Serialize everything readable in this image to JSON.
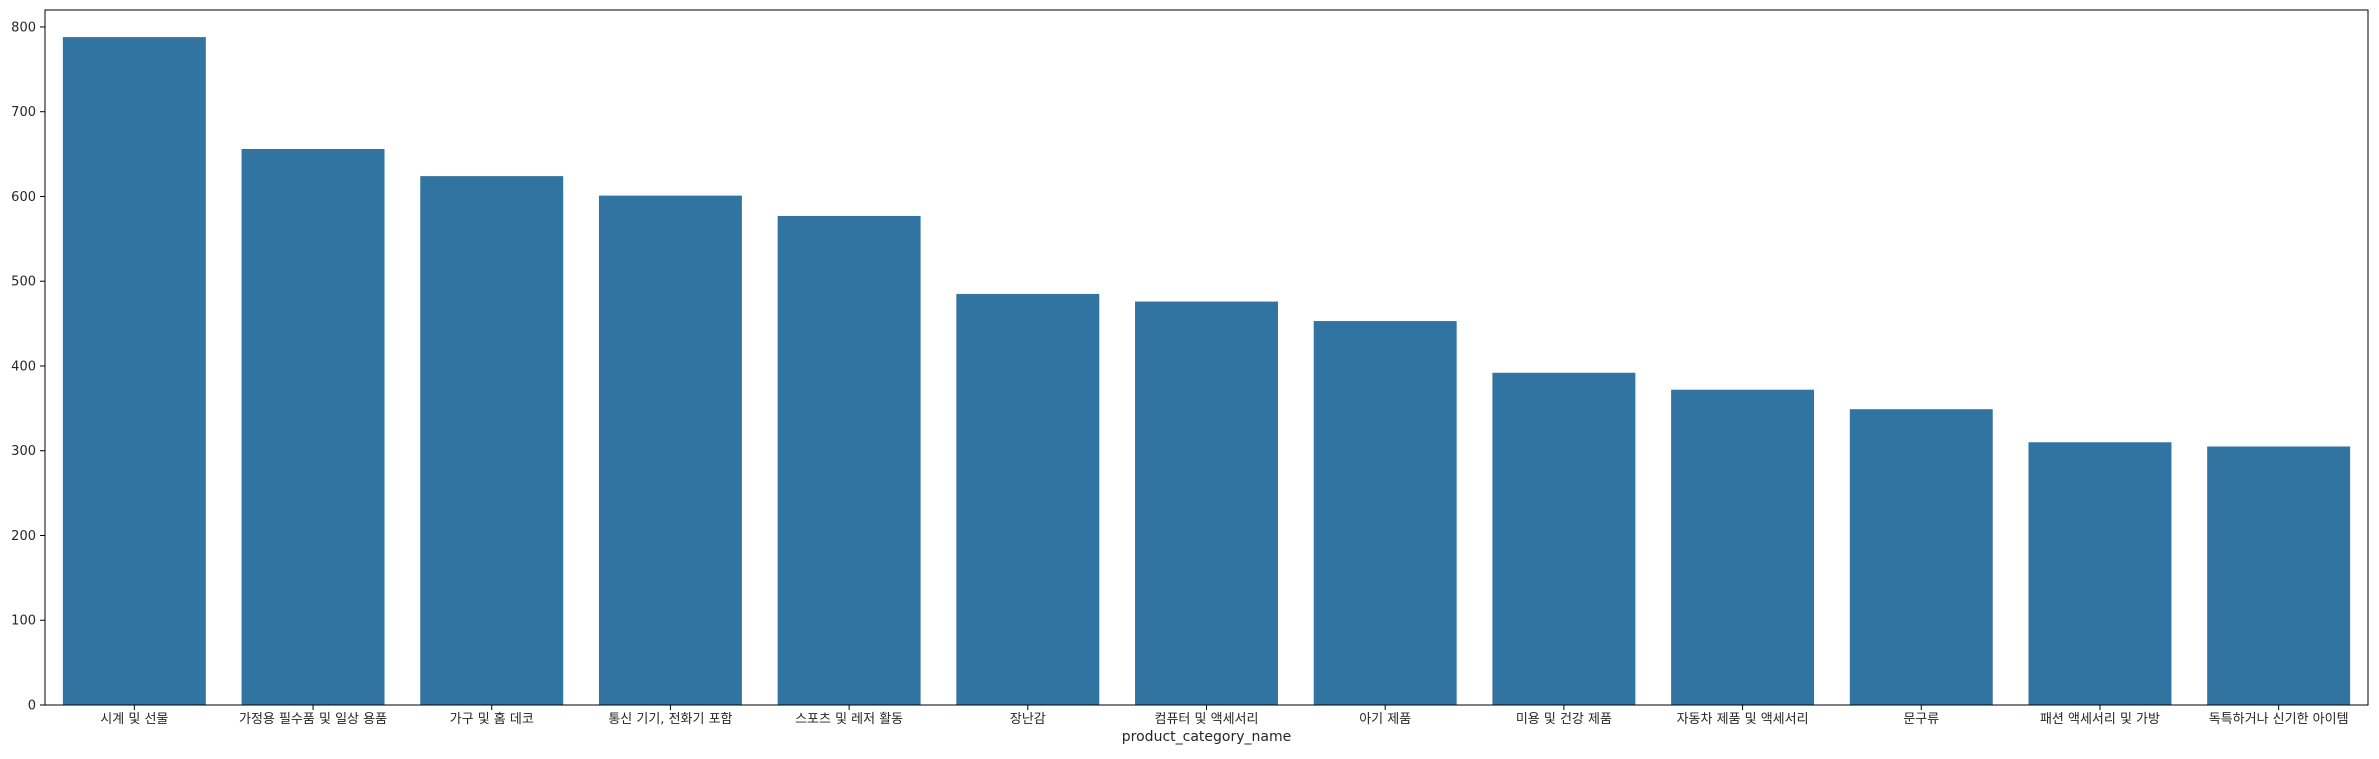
{
  "chart_data": {
    "type": "bar",
    "title": "",
    "xlabel": "product_category_name",
    "ylabel": "",
    "ylim": [
      0,
      820
    ],
    "yticks": [
      0,
      100,
      200,
      300,
      400,
      500,
      600,
      700,
      800
    ],
    "grid": false,
    "bar_color": "#3274a1",
    "categories": [
      "시계 및 선물",
      "가정용 필수품 및 일상 용품",
      "가구 및 홈 데코",
      "통신 기기, 전화기 포함",
      "스포츠 및 레저 활동",
      "장난감",
      "컴퓨터 및 액세서리",
      "아기 제품",
      "미용 및 건강 제품",
      "자동차 제품 및 액세서리",
      "문구류",
      "패션 액세서리 및 가방",
      "독특하거나 신기한 아이템"
    ],
    "values": [
      788,
      656,
      624,
      601,
      577,
      485,
      476,
      453,
      392,
      372,
      349,
      310,
      305
    ]
  }
}
